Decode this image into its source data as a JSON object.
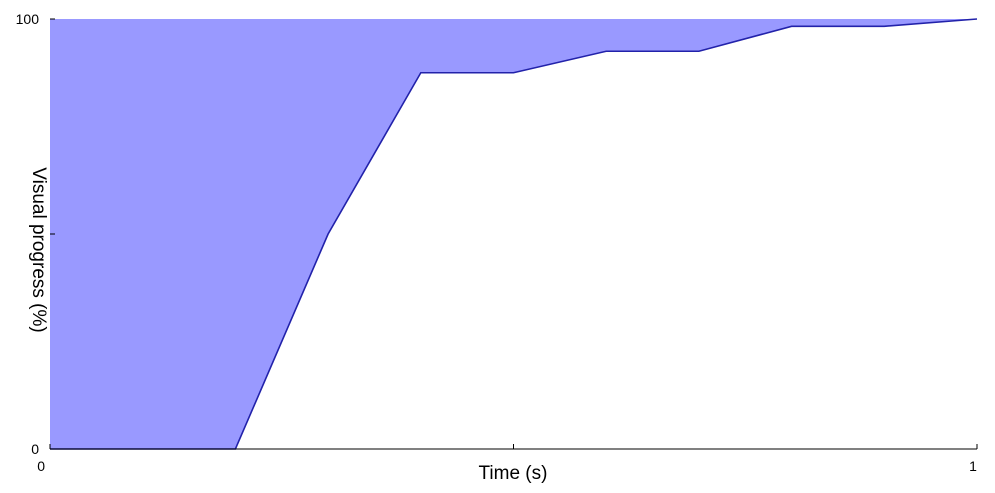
{
  "chart_data": {
    "type": "area",
    "title": "",
    "xlabel": "Time (s)",
    "ylabel": "Visual progress (%)",
    "xlim": [
      0,
      1
    ],
    "ylim": [
      0,
      100
    ],
    "x_ticks": [
      0,
      0.5,
      1
    ],
    "x_tick_labels": [
      "0",
      "",
      "1"
    ],
    "y_ticks": [
      0,
      50,
      100
    ],
    "y_tick_labels": [
      "0",
      "",
      "100"
    ],
    "grid": false,
    "colors": {
      "fill": "#9999ff",
      "line": "#2222aa",
      "axis": "#000000"
    },
    "series": [
      {
        "x": [
          0,
          0.2,
          0.3,
          0.4,
          0.5,
          0.6,
          0.7,
          0.8,
          0.9,
          1.0
        ],
        "y": [
          0,
          0,
          50,
          87.5,
          87.5,
          92.5,
          92.5,
          98.3,
          98.3,
          100
        ]
      }
    ]
  }
}
